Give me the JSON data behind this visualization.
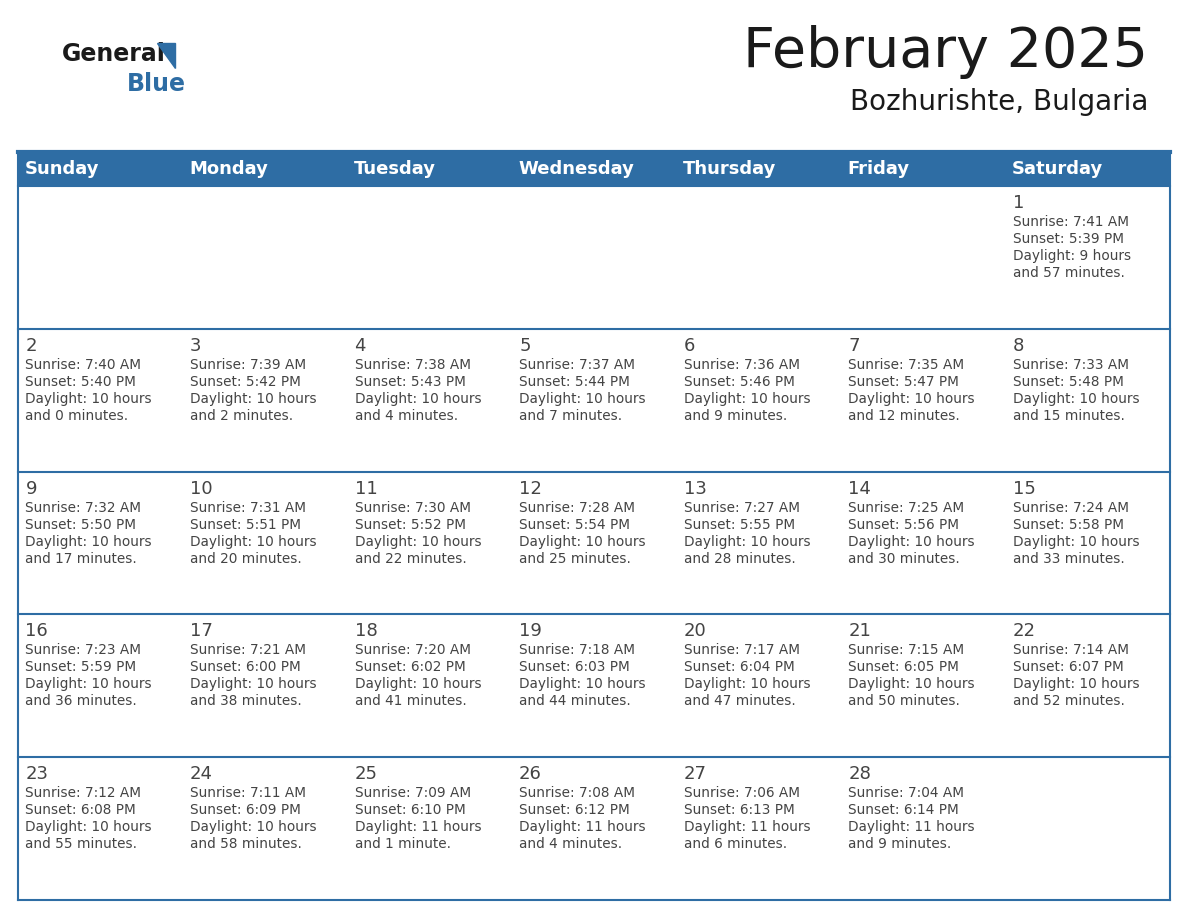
{
  "title": "February 2025",
  "subtitle": "Bozhurishte, Bulgaria",
  "header_bg_color": "#2e6da4",
  "header_text_color": "#ffffff",
  "border_color": "#2e6da4",
  "day_headers": [
    "Sunday",
    "Monday",
    "Tuesday",
    "Wednesday",
    "Thursday",
    "Friday",
    "Saturday"
  ],
  "text_color": "#444444",
  "logo_blue_color": "#2e6da4",
  "days": [
    {
      "day": 1,
      "col": 6,
      "row": 0,
      "sunrise": "7:41 AM",
      "sunset": "5:39 PM",
      "daylight": "9 hours and 57 minutes."
    },
    {
      "day": 2,
      "col": 0,
      "row": 1,
      "sunrise": "7:40 AM",
      "sunset": "5:40 PM",
      "daylight": "10 hours and 0 minutes."
    },
    {
      "day": 3,
      "col": 1,
      "row": 1,
      "sunrise": "7:39 AM",
      "sunset": "5:42 PM",
      "daylight": "10 hours and 2 minutes."
    },
    {
      "day": 4,
      "col": 2,
      "row": 1,
      "sunrise": "7:38 AM",
      "sunset": "5:43 PM",
      "daylight": "10 hours and 4 minutes."
    },
    {
      "day": 5,
      "col": 3,
      "row": 1,
      "sunrise": "7:37 AM",
      "sunset": "5:44 PM",
      "daylight": "10 hours and 7 minutes."
    },
    {
      "day": 6,
      "col": 4,
      "row": 1,
      "sunrise": "7:36 AM",
      "sunset": "5:46 PM",
      "daylight": "10 hours and 9 minutes."
    },
    {
      "day": 7,
      "col": 5,
      "row": 1,
      "sunrise": "7:35 AM",
      "sunset": "5:47 PM",
      "daylight": "10 hours and 12 minutes."
    },
    {
      "day": 8,
      "col": 6,
      "row": 1,
      "sunrise": "7:33 AM",
      "sunset": "5:48 PM",
      "daylight": "10 hours and 15 minutes."
    },
    {
      "day": 9,
      "col": 0,
      "row": 2,
      "sunrise": "7:32 AM",
      "sunset": "5:50 PM",
      "daylight": "10 hours and 17 minutes."
    },
    {
      "day": 10,
      "col": 1,
      "row": 2,
      "sunrise": "7:31 AM",
      "sunset": "5:51 PM",
      "daylight": "10 hours and 20 minutes."
    },
    {
      "day": 11,
      "col": 2,
      "row": 2,
      "sunrise": "7:30 AM",
      "sunset": "5:52 PM",
      "daylight": "10 hours and 22 minutes."
    },
    {
      "day": 12,
      "col": 3,
      "row": 2,
      "sunrise": "7:28 AM",
      "sunset": "5:54 PM",
      "daylight": "10 hours and 25 minutes."
    },
    {
      "day": 13,
      "col": 4,
      "row": 2,
      "sunrise": "7:27 AM",
      "sunset": "5:55 PM",
      "daylight": "10 hours and 28 minutes."
    },
    {
      "day": 14,
      "col": 5,
      "row": 2,
      "sunrise": "7:25 AM",
      "sunset": "5:56 PM",
      "daylight": "10 hours and 30 minutes."
    },
    {
      "day": 15,
      "col": 6,
      "row": 2,
      "sunrise": "7:24 AM",
      "sunset": "5:58 PM",
      "daylight": "10 hours and 33 minutes."
    },
    {
      "day": 16,
      "col": 0,
      "row": 3,
      "sunrise": "7:23 AM",
      "sunset": "5:59 PM",
      "daylight": "10 hours and 36 minutes."
    },
    {
      "day": 17,
      "col": 1,
      "row": 3,
      "sunrise": "7:21 AM",
      "sunset": "6:00 PM",
      "daylight": "10 hours and 38 minutes."
    },
    {
      "day": 18,
      "col": 2,
      "row": 3,
      "sunrise": "7:20 AM",
      "sunset": "6:02 PM",
      "daylight": "10 hours and 41 minutes."
    },
    {
      "day": 19,
      "col": 3,
      "row": 3,
      "sunrise": "7:18 AM",
      "sunset": "6:03 PM",
      "daylight": "10 hours and 44 minutes."
    },
    {
      "day": 20,
      "col": 4,
      "row": 3,
      "sunrise": "7:17 AM",
      "sunset": "6:04 PM",
      "daylight": "10 hours and 47 minutes."
    },
    {
      "day": 21,
      "col": 5,
      "row": 3,
      "sunrise": "7:15 AM",
      "sunset": "6:05 PM",
      "daylight": "10 hours and 50 minutes."
    },
    {
      "day": 22,
      "col": 6,
      "row": 3,
      "sunrise": "7:14 AM",
      "sunset": "6:07 PM",
      "daylight": "10 hours and 52 minutes."
    },
    {
      "day": 23,
      "col": 0,
      "row": 4,
      "sunrise": "7:12 AM",
      "sunset": "6:08 PM",
      "daylight": "10 hours and 55 minutes."
    },
    {
      "day": 24,
      "col": 1,
      "row": 4,
      "sunrise": "7:11 AM",
      "sunset": "6:09 PM",
      "daylight": "10 hours and 58 minutes."
    },
    {
      "day": 25,
      "col": 2,
      "row": 4,
      "sunrise": "7:09 AM",
      "sunset": "6:10 PM",
      "daylight": "11 hours and 1 minute."
    },
    {
      "day": 26,
      "col": 3,
      "row": 4,
      "sunrise": "7:08 AM",
      "sunset": "6:12 PM",
      "daylight": "11 hours and 4 minutes."
    },
    {
      "day": 27,
      "col": 4,
      "row": 4,
      "sunrise": "7:06 AM",
      "sunset": "6:13 PM",
      "daylight": "11 hours and 6 minutes."
    },
    {
      "day": 28,
      "col": 5,
      "row": 4,
      "sunrise": "7:04 AM",
      "sunset": "6:14 PM",
      "daylight": "11 hours and 9 minutes."
    }
  ]
}
